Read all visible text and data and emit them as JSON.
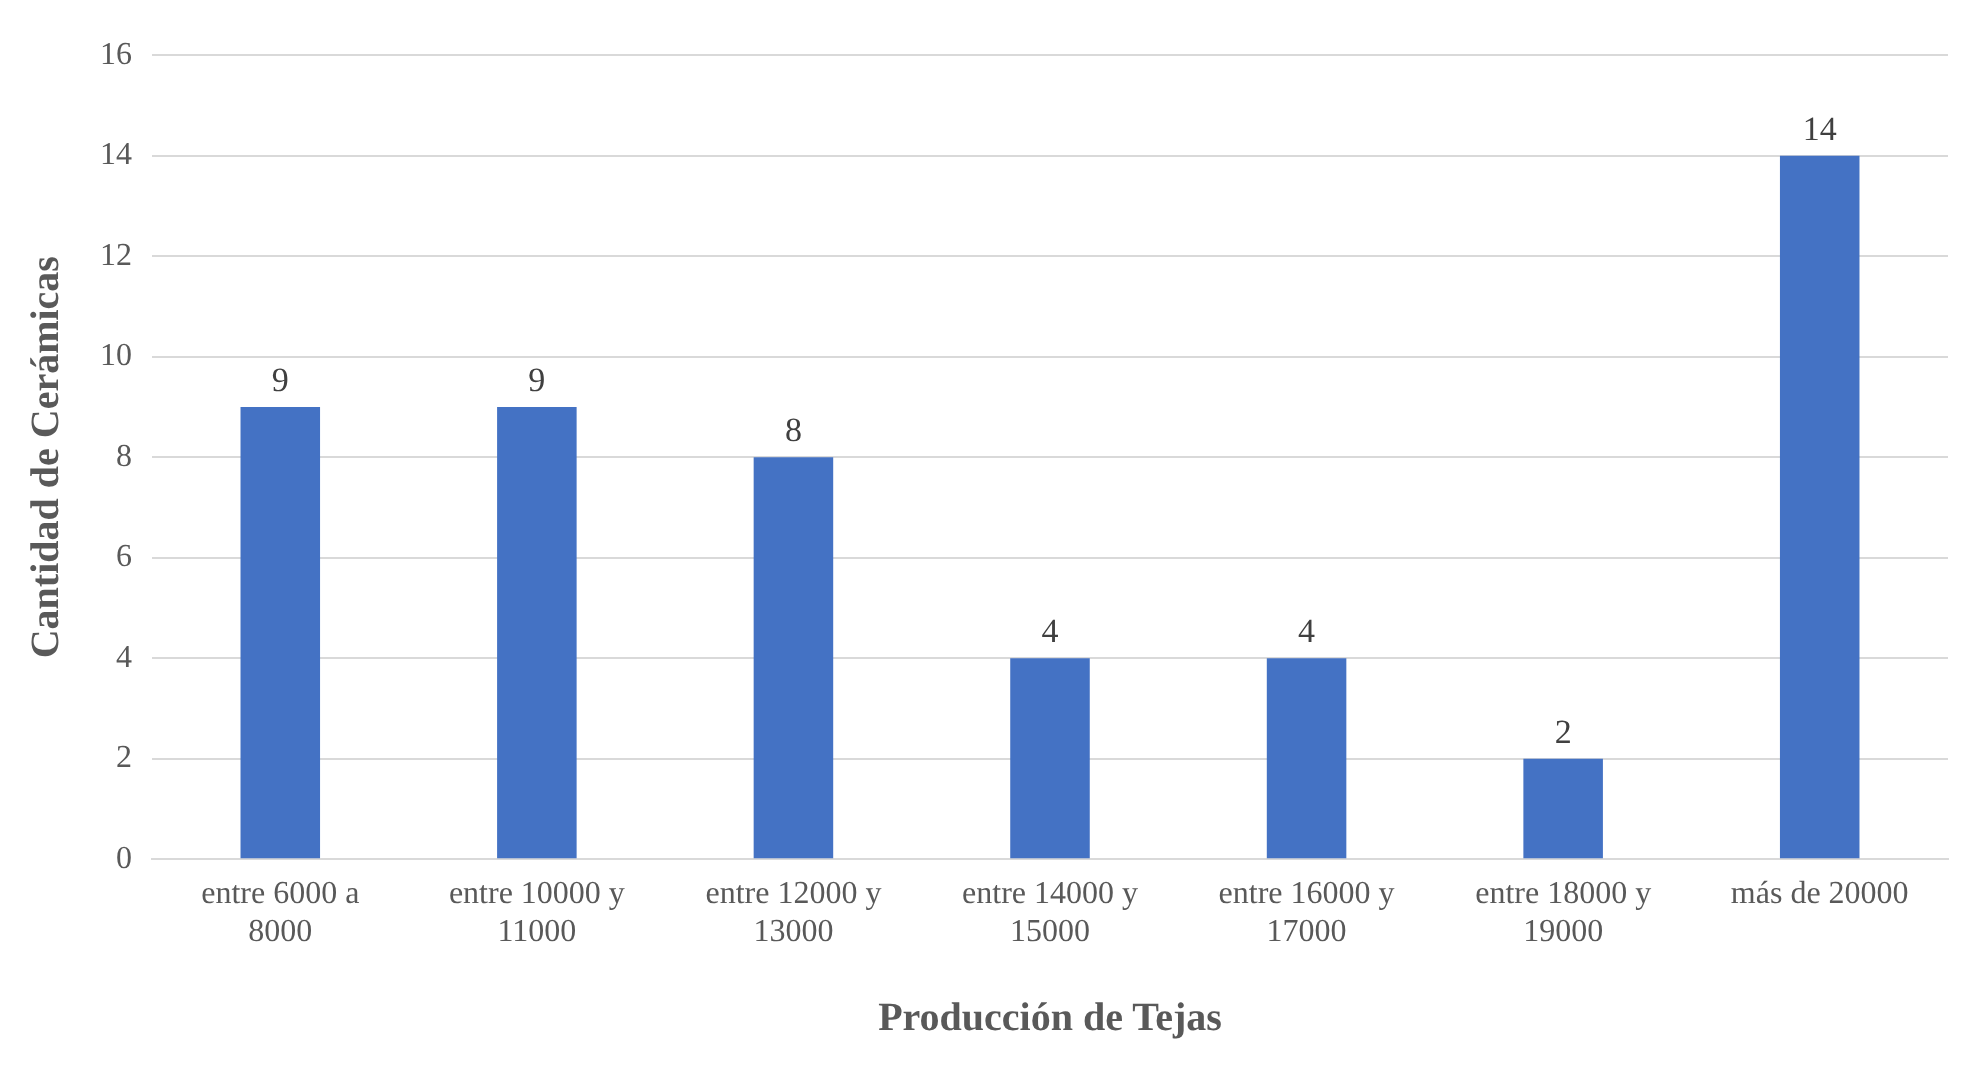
{
  "chart_data": {
    "type": "bar",
    "xlabel": "Producción de Tejas",
    "ylabel": "Cantidad de Cerámicas",
    "categories": [
      "entre 6000 a 8000",
      "entre 10000 y 11000",
      "entre 12000 y 13000",
      "entre 14000 y 15000",
      "entre 16000 y 17000",
      "entre 18000 y 19000",
      "más de 20000"
    ],
    "values": [
      9,
      9,
      8,
      4,
      4,
      2,
      14
    ],
    "color": "#4472c4",
    "ylim": [
      0,
      16
    ],
    "yticks": [
      0,
      2,
      4,
      6,
      8,
      10,
      12,
      14,
      16
    ],
    "grid": "y",
    "data_labels": true,
    "legend": false
  }
}
